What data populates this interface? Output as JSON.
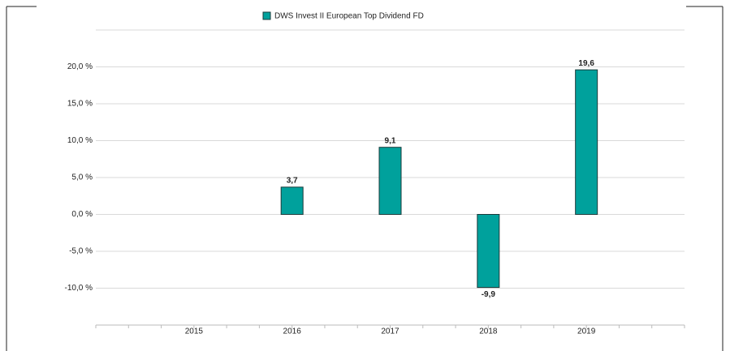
{
  "chart_data": {
    "type": "bar",
    "series": [
      {
        "name": "DWS Invest II European Top Dividend  FD",
        "color": "#00a19c",
        "values": [
          null,
          3.7,
          9.1,
          -9.9,
          19.6
        ],
        "value_labels": [
          null,
          "3,7",
          "9,1",
          "-9,9",
          "19,6"
        ]
      }
    ],
    "categories": [
      "2015",
      "2016",
      "2017",
      "2018",
      "2019"
    ],
    "ylim": [
      -15,
      25
    ],
    "yticks": [
      {
        "value": -10,
        "label": "-10,0 %"
      },
      {
        "value": -5,
        "label": "-5,0 %"
      },
      {
        "value": 0,
        "label": "0,0 %"
      },
      {
        "value": 5,
        "label": "5,0 %"
      },
      {
        "value": 10,
        "label": "10,0 %"
      },
      {
        "value": 15,
        "label": "15,0 %"
      },
      {
        "value": 20,
        "label": "20,0 %"
      }
    ],
    "grid": true
  }
}
